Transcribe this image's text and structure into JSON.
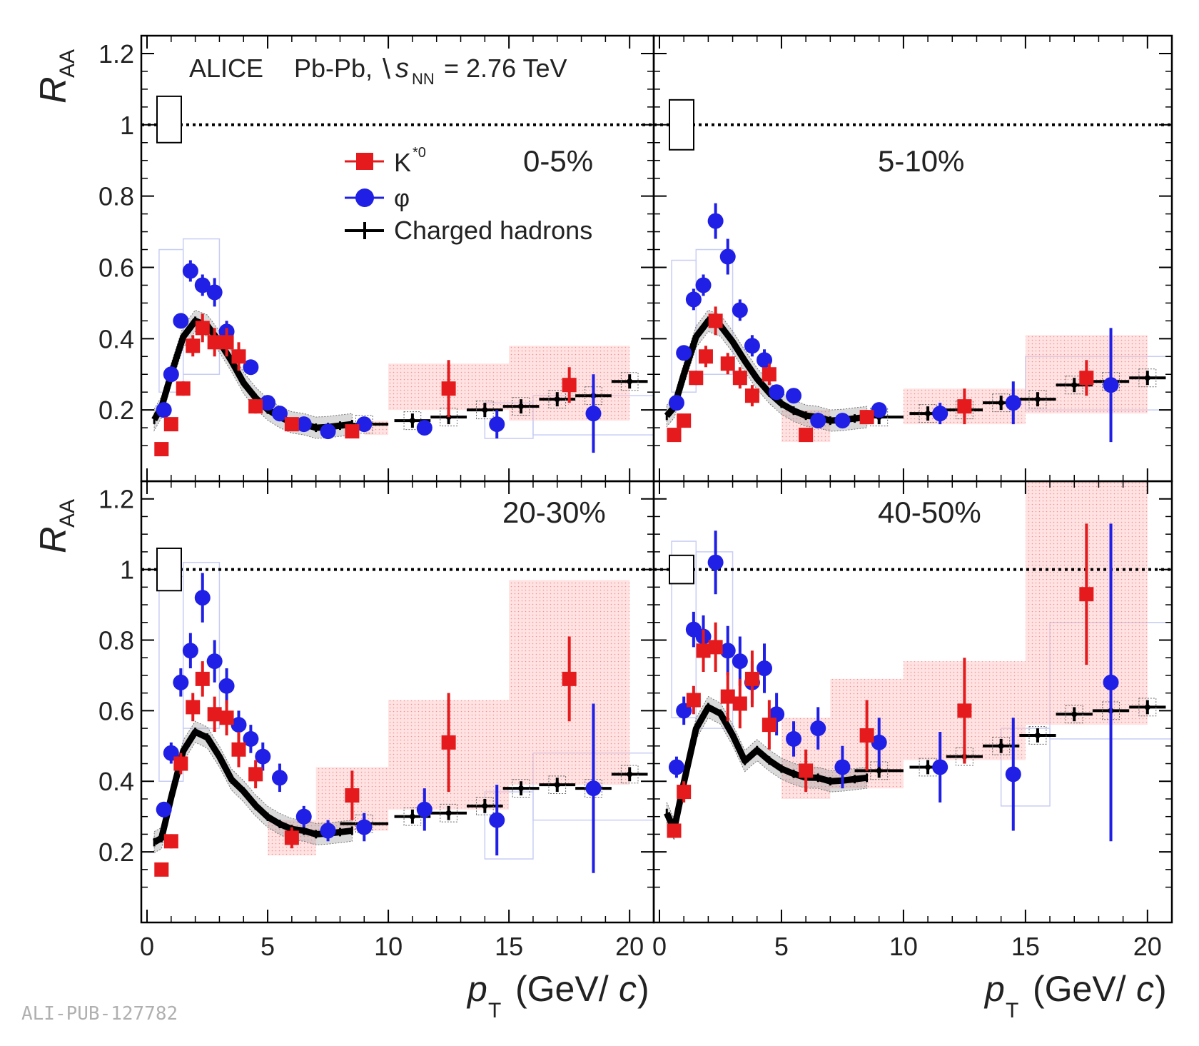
{
  "figure": {
    "experiment": "ALICE",
    "system": "Pb-Pb,",
    "sqrt_symbol": "\\",
    "energy_var": "s",
    "energy_sub": "NN",
    "energy_value": "= 2.76 TeV",
    "y_axis_label": "R",
    "y_axis_sub": "AA",
    "x_axis_label": "p",
    "x_axis_sub": "T",
    "x_axis_unit_open": "(GeV/",
    "x_axis_unit_var": "c",
    "x_axis_unit_close": ")",
    "watermark": "ALI-PUB-127782",
    "legend": [
      {
        "key": "kstar",
        "label": "K",
        "sup": "*0",
        "color": "#e41a1c",
        "marker": "square"
      },
      {
        "key": "phi",
        "label": "φ",
        "sup": "",
        "color": "#1f1fe6",
        "marker": "circle"
      },
      {
        "key": "ch",
        "label": "Charged hadrons",
        "sup": "",
        "color": "#000000",
        "marker": "cross"
      }
    ]
  },
  "chart_data": [
    {
      "type": "scatter",
      "title": "0-5%",
      "xlim": [
        0,
        21
      ],
      "ylim": [
        0,
        1.25
      ],
      "xticks": [
        "0",
        "5",
        "10",
        "15",
        "20"
      ],
      "yticks": [
        "0.2",
        "0.4",
        "0.6",
        "0.8",
        "1",
        "1.2"
      ],
      "reference_line": 1,
      "norm_box": [
        0.95,
        1.08
      ],
      "series": [
        {
          "name": "K*0",
          "x": [
            0.6,
            1.0,
            1.5,
            1.9,
            2.3,
            2.8,
            3.3,
            3.8,
            4.5,
            6.0,
            8.5,
            12.5,
            17.5
          ],
          "y": [
            0.09,
            0.16,
            0.26,
            0.38,
            0.43,
            0.39,
            0.39,
            0.35,
            0.21,
            0.16,
            0.14,
            0.26,
            0.27
          ],
          "err": [
            0.01,
            0.015,
            0.02,
            0.03,
            0.04,
            0.04,
            0.04,
            0.04,
            0.02,
            0.015,
            0.015,
            0.08,
            0.05
          ]
        },
        {
          "name": "phi",
          "x": [
            0.7,
            1.0,
            1.4,
            1.8,
            2.3,
            2.8,
            3.3,
            4.3,
            5.0,
            5.5,
            6.5,
            7.5,
            9.0,
            11.5,
            14.5,
            18.5
          ],
          "y": [
            0.2,
            0.3,
            0.45,
            0.59,
            0.55,
            0.53,
            0.42,
            0.32,
            0.22,
            0.19,
            0.16,
            0.14,
            0.16,
            0.15,
            0.16,
            0.19
          ],
          "err": [
            0.015,
            0.02,
            0.02,
            0.03,
            0.03,
            0.04,
            0.03,
            0.02,
            0.015,
            0.015,
            0.015,
            0.015,
            0.02,
            0.02,
            0.04,
            0.11
          ]
        }
      ],
      "charged_hadrons": {
        "peak": 0.45,
        "low": 0.15,
        "high_x": [
          9.0,
          11.0,
          12.5,
          14.0,
          15.5,
          17.0,
          18.5,
          20.0
        ],
        "high_y": [
          0.16,
          0.17,
          0.18,
          0.2,
          0.21,
          0.23,
          0.24,
          0.28
        ]
      },
      "syst_k": [
        [
          9.0,
          10.0,
          0.13,
          0.17
        ],
        [
          10.0,
          15.0,
          0.2,
          0.33
        ],
        [
          15.0,
          20.0,
          0.17,
          0.38
        ]
      ],
      "syst_phi": [
        [
          0.5,
          1.5,
          0.25,
          0.65
        ],
        [
          1.5,
          3.0,
          0.3,
          0.68
        ],
        [
          14.0,
          16.0,
          0.12,
          0.22
        ],
        [
          16.0,
          21.0,
          0.13,
          0.24
        ]
      ]
    },
    {
      "type": "scatter",
      "title": "5-10%",
      "xlim": [
        0,
        21
      ],
      "ylim": [
        0,
        1.25
      ],
      "xticks": [
        "0",
        "5",
        "10",
        "15",
        "20"
      ],
      "yticks": [
        "0.2",
        "0.4",
        "0.6",
        "0.8",
        "1",
        "1.2"
      ],
      "reference_line": 1,
      "norm_box": [
        0.93,
        1.07
      ],
      "series": [
        {
          "name": "K*0",
          "x": [
            0.6,
            1.0,
            1.5,
            1.9,
            2.3,
            2.8,
            3.3,
            3.8,
            4.5,
            6.0,
            8.5,
            12.5,
            17.5
          ],
          "y": [
            0.13,
            0.17,
            0.29,
            0.35,
            0.45,
            0.33,
            0.29,
            0.24,
            0.3,
            0.13,
            0.18,
            0.21,
            0.29
          ],
          "err": [
            0.01,
            0.015,
            0.02,
            0.03,
            0.04,
            0.03,
            0.03,
            0.03,
            0.03,
            0.015,
            0.02,
            0.05,
            0.05
          ]
        },
        {
          "name": "phi",
          "x": [
            0.7,
            1.0,
            1.4,
            1.8,
            2.3,
            2.8,
            3.3,
            3.8,
            4.3,
            4.8,
            5.5,
            6.5,
            7.5,
            9.0,
            11.5,
            14.5,
            18.5
          ],
          "y": [
            0.22,
            0.36,
            0.51,
            0.55,
            0.73,
            0.63,
            0.48,
            0.38,
            0.34,
            0.25,
            0.24,
            0.17,
            0.17,
            0.2,
            0.19,
            0.22,
            0.27
          ],
          "err": [
            0.015,
            0.02,
            0.03,
            0.03,
            0.05,
            0.05,
            0.03,
            0.03,
            0.03,
            0.02,
            0.02,
            0.02,
            0.02,
            0.02,
            0.03,
            0.06,
            0.16
          ]
        }
      ],
      "charged_hadrons": {
        "peak": 0.45,
        "low": 0.17,
        "high_x": [
          9.0,
          11.0,
          12.5,
          14.0,
          15.5,
          17.0,
          18.5,
          20.0
        ],
        "high_y": [
          0.18,
          0.19,
          0.2,
          0.22,
          0.23,
          0.27,
          0.28,
          0.29
        ]
      },
      "syst_k": [
        [
          5.0,
          7.0,
          0.11,
          0.2
        ],
        [
          10.0,
          15.0,
          0.16,
          0.26
        ],
        [
          15.0,
          20.0,
          0.19,
          0.41
        ]
      ],
      "syst_phi": [
        [
          0.5,
          1.5,
          0.25,
          0.62
        ],
        [
          1.5,
          3.0,
          0.3,
          0.65
        ],
        [
          15.0,
          21.0,
          0.2,
          0.35
        ]
      ]
    },
    {
      "type": "scatter",
      "title": "20-30%",
      "xlim": [
        0,
        21
      ],
      "ylim": [
        0,
        1.25
      ],
      "xticks": [
        "0",
        "5",
        "10",
        "15",
        "20"
      ],
      "yticks": [
        "0.2",
        "0.4",
        "0.6",
        "0.8",
        "1",
        "1.2"
      ],
      "reference_line": 1,
      "norm_box": [
        0.94,
        1.06
      ],
      "series": [
        {
          "name": "K*0",
          "x": [
            0.6,
            1.0,
            1.4,
            1.9,
            2.3,
            2.8,
            3.3,
            3.8,
            4.5,
            6.0,
            8.5,
            12.5,
            17.5
          ],
          "y": [
            0.15,
            0.23,
            0.45,
            0.61,
            0.69,
            0.59,
            0.58,
            0.49,
            0.42,
            0.24,
            0.36,
            0.51,
            0.69
          ],
          "err": [
            0.01,
            0.02,
            0.03,
            0.04,
            0.05,
            0.05,
            0.05,
            0.05,
            0.04,
            0.03,
            0.07,
            0.14,
            0.12
          ]
        },
        {
          "name": "phi",
          "x": [
            0.7,
            1.0,
            1.4,
            1.8,
            2.3,
            2.8,
            3.3,
            3.8,
            4.3,
            4.8,
            5.5,
            6.5,
            7.5,
            9.0,
            11.5,
            14.5,
            18.5
          ],
          "y": [
            0.32,
            0.48,
            0.68,
            0.77,
            0.92,
            0.74,
            0.67,
            0.56,
            0.52,
            0.47,
            0.41,
            0.3,
            0.26,
            0.27,
            0.32,
            0.29,
            0.38
          ],
          "err": [
            0.02,
            0.03,
            0.04,
            0.05,
            0.07,
            0.06,
            0.05,
            0.04,
            0.04,
            0.04,
            0.04,
            0.03,
            0.03,
            0.04,
            0.06,
            0.1,
            0.24
          ]
        }
      ],
      "charged_hadrons": {
        "peak": 0.54,
        "low": 0.25,
        "high_x": [
          9.0,
          11.0,
          12.5,
          14.0,
          15.5,
          17.0,
          18.5,
          20.0
        ],
        "high_y": [
          0.28,
          0.3,
          0.31,
          0.33,
          0.38,
          0.39,
          0.38,
          0.42
        ]
      },
      "syst_k": [
        [
          5.0,
          7.0,
          0.19,
          0.29
        ],
        [
          7.0,
          10.0,
          0.26,
          0.44
        ],
        [
          10.0,
          15.0,
          0.32,
          0.63
        ],
        [
          15.0,
          20.0,
          0.39,
          0.97
        ]
      ],
      "syst_phi": [
        [
          0.5,
          1.5,
          0.4,
          0.98
        ],
        [
          1.5,
          3.0,
          0.55,
          1.02
        ],
        [
          14.0,
          16.0,
          0.18,
          0.37
        ],
        [
          16.0,
          21.0,
          0.29,
          0.48
        ]
      ]
    },
    {
      "type": "scatter",
      "title": "40-50%",
      "xlim": [
        0,
        21
      ],
      "ylim": [
        0,
        1.25
      ],
      "xticks": [
        "0",
        "5",
        "10",
        "15",
        "20"
      ],
      "yticks": [
        "0.2",
        "0.4",
        "0.6",
        "0.8",
        "1",
        "1.2"
      ],
      "reference_line": 1,
      "norm_box": [
        0.96,
        1.04
      ],
      "series": [
        {
          "name": "K*0",
          "x": [
            0.6,
            1.0,
            1.4,
            1.8,
            2.3,
            2.8,
            3.3,
            3.8,
            4.5,
            6.0,
            8.5,
            12.5,
            17.5
          ],
          "y": [
            0.26,
            0.37,
            0.63,
            0.77,
            0.78,
            0.64,
            0.62,
            0.69,
            0.56,
            0.43,
            0.53,
            0.6,
            0.93
          ],
          "err": [
            0.02,
            0.03,
            0.04,
            0.06,
            0.07,
            0.07,
            0.07,
            0.08,
            0.07,
            0.06,
            0.1,
            0.15,
            0.2
          ]
        },
        {
          "name": "phi",
          "x": [
            0.7,
            1.0,
            1.4,
            1.8,
            2.3,
            2.8,
            3.3,
            3.8,
            4.3,
            4.8,
            5.5,
            6.5,
            7.5,
            9.0,
            11.5,
            14.5,
            18.5
          ],
          "y": [
            0.44,
            0.6,
            0.83,
            0.81,
            1.02,
            0.77,
            0.74,
            0.68,
            0.72,
            0.59,
            0.52,
            0.55,
            0.44,
            0.51,
            0.44,
            0.42,
            0.68
          ],
          "err": [
            0.03,
            0.04,
            0.05,
            0.06,
            0.09,
            0.07,
            0.07,
            0.06,
            0.07,
            0.06,
            0.05,
            0.06,
            0.06,
            0.07,
            0.1,
            0.16,
            0.45
          ]
        }
      ],
      "charged_hadrons": {
        "peak": 0.61,
        "low": 0.4,
        "high_x": [
          9.0,
          11.0,
          12.5,
          14.0,
          15.5,
          17.0,
          18.5,
          20.0
        ],
        "high_y": [
          0.43,
          0.44,
          0.47,
          0.5,
          0.53,
          0.59,
          0.6,
          0.61
        ]
      },
      "syst_k": [
        [
          5.0,
          7.0,
          0.35,
          0.58
        ],
        [
          7.0,
          10.0,
          0.38,
          0.69
        ],
        [
          10.0,
          15.0,
          0.46,
          0.74
        ],
        [
          15.0,
          20.0,
          0.56,
          1.25
        ]
      ],
      "syst_phi": [
        [
          0.5,
          1.5,
          0.58,
          1.08
        ],
        [
          1.5,
          3.0,
          0.55,
          1.05
        ],
        [
          14.0,
          16.0,
          0.33,
          0.55
        ],
        [
          16.0,
          21.0,
          0.52,
          0.85
        ]
      ]
    }
  ]
}
